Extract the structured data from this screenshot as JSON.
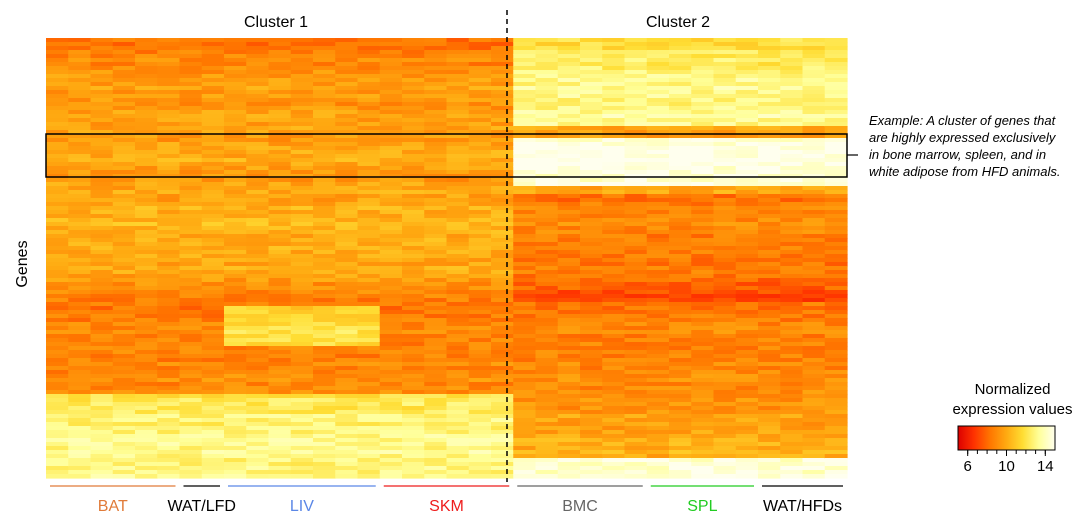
{
  "chart_data": {
    "type": "heatmap",
    "title": "",
    "ylabel": "Genes",
    "column_groups": [
      {
        "label": "BAT",
        "color": "#e07b39",
        "n": 6
      },
      {
        "label": "WAT/LFD",
        "color": "#000000",
        "n": 2
      },
      {
        "label": "LIV",
        "color": "#5b87e6",
        "n": 7
      },
      {
        "label": "SKM",
        "color": "#ee1c1c",
        "n": 6
      },
      {
        "label": "BMC",
        "color": "#666666",
        "n": 6
      },
      {
        "label": "SPL",
        "color": "#22cc22",
        "n": 5
      },
      {
        "label": "WAT/HFDs",
        "color": "#000000",
        "n": 4
      }
    ],
    "clusters": [
      {
        "label": "Cluster 1",
        "groups": [
          "BAT",
          "WAT/LFD",
          "LIV",
          "SKM"
        ]
      },
      {
        "label": "Cluster 2",
        "groups": [
          "BMC",
          "SPL",
          "WAT/HFDs"
        ]
      }
    ],
    "highlight": {
      "rows_fraction": [
        0.23,
        0.335
      ],
      "note": "Example: A cluster of genes that are highly expressed exclusively in bone marrow, spleen, and in white adipose from HFD animals."
    },
    "colorbar": {
      "title": "Normalized expression values",
      "ticks": [
        6,
        10,
        14
      ],
      "range": [
        5,
        15
      ],
      "colors": [
        "#dd0000",
        "#ff3300",
        "#ff7700",
        "#ffaa11",
        "#ffdd33",
        "#ffff99",
        "#ffffee"
      ]
    }
  }
}
